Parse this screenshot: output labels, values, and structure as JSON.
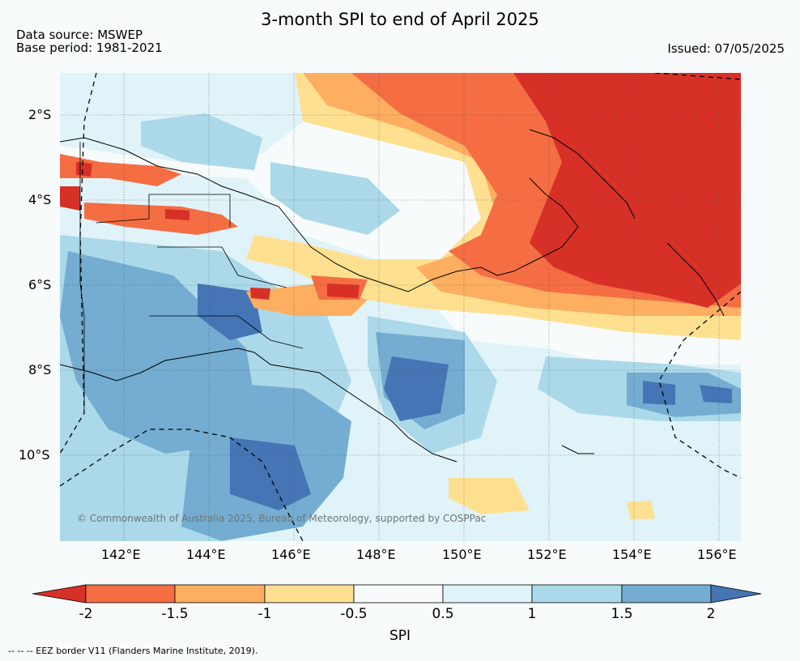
{
  "title": "3-month SPI to end of April 2025",
  "data_source": "Data source: MSWEP",
  "base_period": "Base period: 1981-2021",
  "issued": "Issued: 07/05/2025",
  "copyright": "© Commonwealth of Australia 2025, Bureau of Meteorology, supported by COSPPac",
  "footnote": "--  --  -- EEZ border V11 (Flanders Marine Institute, 2019).",
  "map": {
    "lon_labels": [
      "142°E",
      "144°E",
      "146°E",
      "148°E",
      "150°E",
      "152°E",
      "154°E",
      "156°E"
    ],
    "lat_labels": [
      "2°S",
      "4°S",
      "6°S",
      "8°S",
      "10°S"
    ],
    "lon_range": [
      140.5,
      156.5
    ],
    "lat_range": [
      -12,
      -1
    ],
    "gridlines": true
  },
  "colorbar": {
    "label": "SPI",
    "ticks": [
      "-2",
      "-1.5",
      "-1",
      "-0.5",
      "0.5",
      "1",
      "1.5",
      "2"
    ],
    "colors": [
      "#d73027",
      "#f46d43",
      "#fdae61",
      "#fee090",
      "#f7fbfc",
      "#e0f3f8",
      "#abd9e9",
      "#74add1",
      "#4575b4"
    ]
  }
}
